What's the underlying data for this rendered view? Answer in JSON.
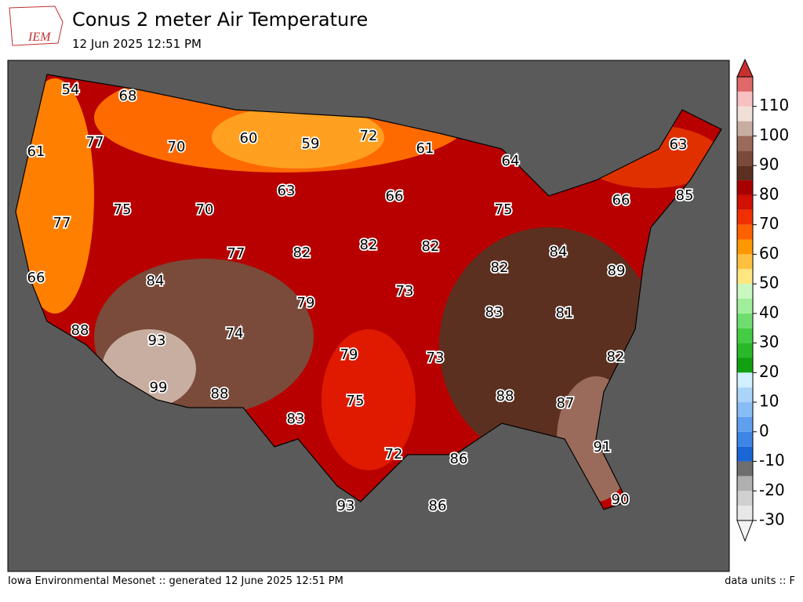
{
  "header": {
    "logo": "IEM",
    "title": "Conus 2 meter Air Temperature",
    "subtitle": "12 Jun 2025 12:51 PM"
  },
  "stations": [
    54,
    68,
    77,
    61,
    70,
    60,
    59,
    72,
    61,
    64,
    63,
    63,
    66,
    75,
    70,
    75,
    66,
    85,
    77,
    77,
    82,
    82,
    82,
    84,
    82,
    89,
    66,
    84,
    73,
    79,
    83,
    81,
    88,
    74,
    93,
    79,
    73,
    82,
    99,
    88,
    75,
    88,
    87,
    83,
    91,
    72,
    86,
    93,
    86,
    90
  ],
  "colorbar": {
    "lim": [
      -30,
      120
    ],
    "ticks": [
      -30,
      -20,
      -10,
      0,
      10,
      20,
      30,
      40,
      50,
      60,
      70,
      80,
      90,
      100,
      110
    ],
    "colors": [
      "#e8e8e8",
      "#d0d0d0",
      "#b0b0b0",
      "#6e6e6e",
      "#1a66d6",
      "#3f85e6",
      "#5fa0ee",
      "#88bcf4",
      "#aad4f8",
      "#d0f0ff",
      "#10a010",
      "#28b828",
      "#44cc44",
      "#70dd70",
      "#a0ee9a",
      "#c8f8c0",
      "#ffe680",
      "#ffc040",
      "#ff9800",
      "#ff6000",
      "#f03000",
      "#d01000",
      "#a80000",
      "#5c3020",
      "#7a4a3a",
      "#9a6a5a",
      "#c8aea0",
      "#f0e0d8",
      "#f8c0c0",
      "#e06868"
    ],
    "over_color": "#c83030",
    "under_color": "#f4f4f4"
  },
  "footer": {
    "left": "Iowa Environmental Mesonet :: generated 12 June 2025 12:51 PM",
    "right": "data units :: F"
  }
}
